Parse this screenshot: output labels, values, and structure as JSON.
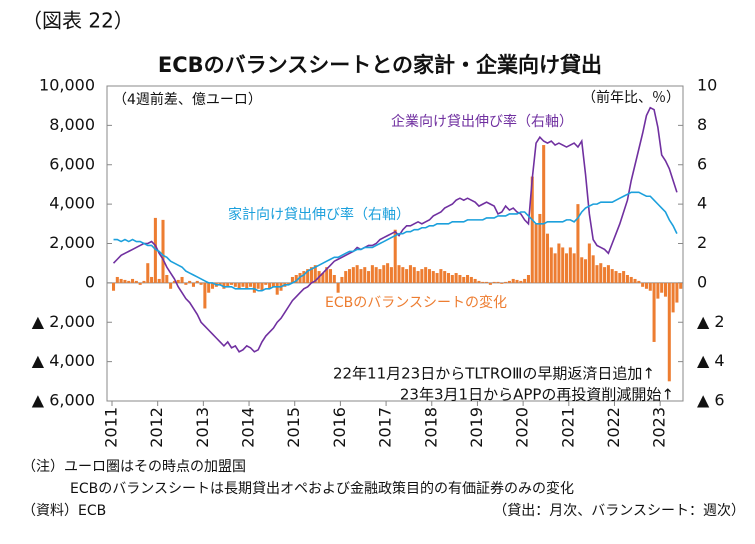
{
  "page_label": "（図表 22）",
  "chart_data": {
    "type": "bar",
    "title": "ECBのバランスシートとの家計・企業向け貸出",
    "y_unit_label": "（4週前差、億ユーロ）",
    "y2_unit_label": "（前年比、％）",
    "annotations": [
      "22年11月23日からTLTROⅢの早期返済日追加↑",
      "23年3月1日からAPPの再投資削減開始↑"
    ],
    "notes": [
      "（注）ユーロ圏はその時点の加盟国",
      "ECBのバランスシートは長期貸出オペおよび金融政策目的の有価証券のみの変化",
      "（資料）ECB",
      "（貸出：月次、バランスシート：週次）"
    ],
    "categories": [
      "2011",
      null,
      null,
      null,
      null,
      null,
      null,
      null,
      null,
      null,
      null,
      null,
      "2012",
      null,
      null,
      null,
      null,
      null,
      null,
      null,
      null,
      null,
      null,
      null,
      "2013",
      null,
      null,
      null,
      null,
      null,
      null,
      null,
      null,
      null,
      null,
      null,
      "2014",
      null,
      null,
      null,
      null,
      null,
      null,
      null,
      null,
      null,
      null,
      null,
      "2015",
      null,
      null,
      null,
      null,
      null,
      null,
      null,
      null,
      null,
      null,
      null,
      "2016",
      null,
      null,
      null,
      null,
      null,
      null,
      null,
      null,
      null,
      null,
      null,
      "2017",
      null,
      null,
      null,
      null,
      null,
      null,
      null,
      null,
      null,
      null,
      null,
      "2018",
      null,
      null,
      null,
      null,
      null,
      null,
      null,
      null,
      null,
      null,
      null,
      "2019",
      null,
      null,
      null,
      null,
      null,
      null,
      null,
      null,
      null,
      null,
      null,
      "2020",
      null,
      null,
      null,
      null,
      null,
      null,
      null,
      null,
      null,
      null,
      null,
      "2021",
      null,
      null,
      null,
      null,
      null,
      null,
      null,
      null,
      null,
      null,
      null,
      "2022",
      null,
      null,
      null,
      null,
      null,
      null,
      null,
      null,
      null,
      null,
      null,
      "2023",
      null,
      null,
      null,
      null,
      null
    ],
    "ylim": [
      -6000,
      10000
    ],
    "yticks": [
      {
        "value": -6000,
        "label": "▲ 6,000"
      },
      {
        "value": -4000,
        "label": "▲ 4,000"
      },
      {
        "value": -2000,
        "label": "▲ 2,000"
      },
      0,
      {
        "value": 2000,
        "label": "2,000"
      },
      {
        "value": 4000,
        "label": "4,000"
      },
      {
        "value": 6000,
        "label": "6,000"
      },
      {
        "value": 8000,
        "label": "8,000"
      },
      {
        "value": 10000,
        "label": "10,000"
      }
    ],
    "y2lim": [
      -6,
      10
    ],
    "y2ticks": [
      {
        "value": -6,
        "label": "▲ 6"
      },
      {
        "value": -4,
        "label": "▲ 4"
      },
      {
        "value": -2,
        "label": "▲ 2"
      },
      0,
      2,
      4,
      6,
      8,
      10
    ],
    "series": [
      {
        "name": "ECBのバランスシートの変化",
        "type": "bar",
        "color": "#ed7d31",
        "values": [
          -400,
          300,
          200,
          150,
          100,
          200,
          100,
          -100,
          100,
          1000,
          300,
          3300,
          200,
          3200,
          400,
          -300,
          100,
          150,
          300,
          -100,
          100,
          -200,
          100,
          -100,
          -1300,
          -500,
          -300,
          -200,
          -100,
          -300,
          -200,
          -100,
          -200,
          -300,
          -200,
          -300,
          -200,
          -500,
          -300,
          -400,
          -100,
          -300,
          -200,
          -600,
          -400,
          -200,
          -100,
          300,
          400,
          500,
          600,
          700,
          800,
          900,
          600,
          500,
          800,
          700,
          400,
          -500,
          300,
          600,
          700,
          800,
          900,
          700,
          800,
          600,
          900,
          800,
          700,
          900,
          1000,
          800,
          2700,
          900,
          800,
          700,
          900,
          800,
          600,
          700,
          800,
          700,
          600,
          500,
          700,
          600,
          500,
          400,
          500,
          400,
          300,
          400,
          300,
          200,
          100,
          50,
          50,
          -100,
          50,
          50,
          -50,
          50,
          100,
          200,
          150,
          100,
          200,
          400,
          5400,
          3000,
          3500,
          7000,
          2500,
          1800,
          1500,
          2000,
          1800,
          1500,
          1800,
          1500,
          4000,
          1300,
          1200,
          2000,
          1400,
          900,
          1000,
          800,
          900,
          700,
          600,
          500,
          600,
          400,
          300,
          200,
          100,
          -200,
          -300,
          -400,
          -3000,
          -800,
          -500,
          -700,
          -5000,
          -1500,
          -1000,
          -300
        ]
      },
      {
        "name": "企業向け貸出伸び率（右軸）",
        "type": "line",
        "axis": "y2",
        "color": "#7030a0",
        "values": [
          1.0,
          1.2,
          1.4,
          1.5,
          1.6,
          1.7,
          1.8,
          1.9,
          2.0,
          2.0,
          2.1,
          1.9,
          1.5,
          1.2,
          0.8,
          0.5,
          0.2,
          -0.2,
          -0.5,
          -0.8,
          -1.0,
          -1.3,
          -1.6,
          -2.0,
          -2.2,
          -2.4,
          -2.6,
          -2.8,
          -3.0,
          -3.2,
          -3.0,
          -3.3,
          -3.2,
          -3.5,
          -3.4,
          -3.2,
          -3.3,
          -3.5,
          -3.4,
          -3.0,
          -2.7,
          -2.5,
          -2.3,
          -2.0,
          -1.8,
          -1.5,
          -1.2,
          -0.9,
          -0.7,
          -0.5,
          -0.3,
          -0.2,
          0.0,
          0.1,
          0.3,
          0.5,
          0.7,
          0.9,
          1.1,
          1.2,
          1.3,
          1.4,
          1.5,
          1.6,
          1.8,
          1.7,
          1.8,
          1.9,
          1.9,
          2.0,
          2.2,
          2.3,
          2.4,
          2.5,
          2.6,
          2.4,
          2.7,
          2.9,
          2.9,
          3.0,
          3.1,
          3.0,
          3.1,
          3.2,
          3.4,
          3.5,
          3.6,
          3.8,
          3.9,
          4.0,
          4.2,
          4.3,
          4.2,
          4.3,
          4.2,
          4.1,
          3.9,
          4.0,
          4.1,
          4.0,
          3.9,
          3.5,
          3.6,
          3.9,
          3.7,
          3.8,
          3.6,
          3.5,
          3.2,
          3.0,
          5.3,
          7.1,
          7.4,
          7.2,
          7.1,
          7.2,
          7.0,
          7.1,
          7.0,
          6.9,
          7.0,
          7.1,
          6.9,
          7.2,
          5.5,
          3.5,
          2.2,
          1.9,
          1.8,
          1.7,
          1.5,
          2.0,
          2.5,
          3.0,
          3.6,
          4.2,
          5.2,
          6.0,
          6.8,
          7.6,
          8.5,
          8.9,
          8.8,
          7.9,
          6.5,
          6.2,
          5.8,
          5.2,
          4.6,
          null
        ]
      },
      {
        "name": "家計向け貸出伸び率（右軸）",
        "type": "line",
        "axis": "y2",
        "color": "#1ca0dc",
        "values": [
          2.2,
          2.2,
          2.1,
          2.2,
          2.1,
          2.2,
          2.1,
          2.1,
          2.0,
          1.9,
          1.9,
          1.7,
          1.6,
          1.4,
          1.3,
          1.1,
          1.0,
          0.9,
          0.8,
          0.6,
          0.5,
          0.4,
          0.3,
          0.2,
          0.1,
          0.0,
          0.0,
          -0.1,
          -0.1,
          -0.2,
          -0.2,
          -0.2,
          -0.3,
          -0.3,
          -0.3,
          -0.3,
          -0.3,
          -0.3,
          -0.4,
          -0.4,
          -0.3,
          -0.3,
          -0.2,
          -0.2,
          -0.2,
          -0.1,
          -0.1,
          0.0,
          0.1,
          0.3,
          0.4,
          0.6,
          0.7,
          0.8,
          0.9,
          1.0,
          1.1,
          1.2,
          1.3,
          1.3,
          1.4,
          1.5,
          1.6,
          1.6,
          1.7,
          1.7,
          1.8,
          1.8,
          1.8,
          1.9,
          2.0,
          2.1,
          2.2,
          2.3,
          2.4,
          2.5,
          2.5,
          2.6,
          2.6,
          2.7,
          2.7,
          2.8,
          2.8,
          2.9,
          2.9,
          3.0,
          3.0,
          3.0,
          3.0,
          3.1,
          3.1,
          3.1,
          3.1,
          3.2,
          3.2,
          3.2,
          3.2,
          3.2,
          3.3,
          3.3,
          3.3,
          3.4,
          3.4,
          3.4,
          3.5,
          3.5,
          3.5,
          3.6,
          3.6,
          3.4,
          3.2,
          3.0,
          3.0,
          3.0,
          3.1,
          3.1,
          3.1,
          3.1,
          3.1,
          3.2,
          3.2,
          3.1,
          3.3,
          3.6,
          3.8,
          3.9,
          4.0,
          4.0,
          4.1,
          4.1,
          4.1,
          4.1,
          4.2,
          4.3,
          4.4,
          4.5,
          4.6,
          4.6,
          4.6,
          4.5,
          4.4,
          4.4,
          4.2,
          4.0,
          3.8,
          3.6,
          3.2,
          2.9,
          2.5,
          null
        ]
      }
    ]
  }
}
